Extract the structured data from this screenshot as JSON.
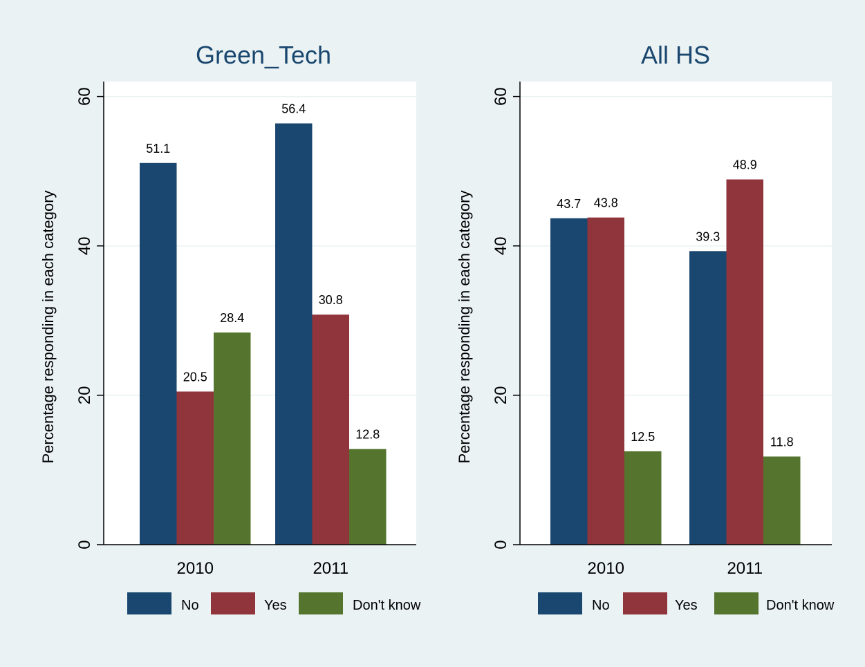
{
  "colors": {
    "background": "#eaf2f3",
    "panel": "#ffffff",
    "grid": "#eaf2f3",
    "axis": "#000000",
    "title": "#1a476f"
  },
  "chart_data": [
    {
      "type": "bar",
      "title": "Green_Tech",
      "xlabel": "",
      "ylabel": "Percentage responding in each category",
      "ylim": [
        0,
        62
      ],
      "yticks": [
        0,
        20,
        40,
        60
      ],
      "grid": true,
      "legend_position": "bottom",
      "categories": [
        "2010",
        "2011"
      ],
      "series": [
        {
          "name": "No",
          "color": "#1a476f",
          "values": [
            51.1,
            56.4
          ],
          "labels": [
            "51.1",
            "56.4"
          ]
        },
        {
          "name": "Yes",
          "color": "#90353b",
          "values": [
            20.5,
            30.8
          ],
          "labels": [
            "20.5",
            "30.8"
          ]
        },
        {
          "name": "Don't know",
          "color": "#55752f",
          "values": [
            28.4,
            12.8
          ],
          "labels": [
            "28.4",
            "12.8"
          ]
        }
      ]
    },
    {
      "type": "bar",
      "title": "All HS",
      "xlabel": "",
      "ylabel": "Percentage responding in each category",
      "ylim": [
        0,
        62
      ],
      "yticks": [
        0,
        20,
        40,
        60
      ],
      "grid": true,
      "legend_position": "bottom",
      "categories": [
        "2010",
        "2011"
      ],
      "series": [
        {
          "name": "No",
          "color": "#1a476f",
          "values": [
            43.7,
            39.3
          ],
          "labels": [
            "43.7",
            "39.3"
          ]
        },
        {
          "name": "Yes",
          "color": "#90353b",
          "values": [
            43.8,
            48.9
          ],
          "labels": [
            "43.8",
            "48.9"
          ]
        },
        {
          "name": "Don't know",
          "color": "#55752f",
          "values": [
            12.5,
            11.8
          ],
          "labels": [
            "12.5",
            "11.8"
          ]
        }
      ]
    }
  ]
}
